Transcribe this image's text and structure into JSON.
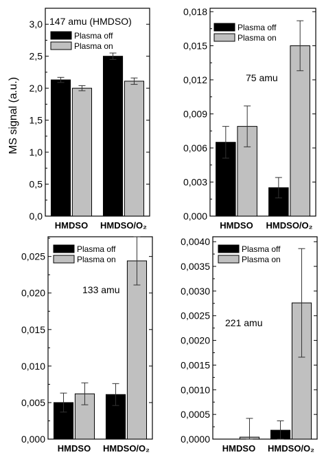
{
  "figure": {
    "ylabel": "MS signal (a.u.)"
  },
  "legend": {
    "off": "Plasma off",
    "on": "Plasma on"
  },
  "colors": {
    "off": "#000000",
    "on": "#c0c0c0",
    "axis": "#000000"
  },
  "chart_data": [
    {
      "type": "bar",
      "annotation": "147 amu (HMDSO)",
      "categories": [
        "HMDSO",
        "HMDSO/O₂"
      ],
      "ylim": [
        0,
        3.25
      ],
      "yticks": [
        "0,0",
        "0,5",
        "1,0",
        "1,5",
        "2,0",
        "2,5",
        "3,0"
      ],
      "ytick_values": [
        0,
        0.5,
        1.0,
        1.5,
        2.0,
        2.5,
        3.0
      ],
      "series": [
        {
          "name": "Plasma off",
          "values": [
            2.13,
            2.5
          ],
          "errors": [
            0.04,
            0.05
          ]
        },
        {
          "name": "Plasma on",
          "values": [
            2.0,
            2.11
          ],
          "errors": [
            0.04,
            0.05
          ]
        }
      ],
      "legend_position": "top-left",
      "grid": false
    },
    {
      "type": "bar",
      "annotation": "75 amu",
      "categories": [
        "HMDSO",
        "HMDSO/O₂"
      ],
      "ylim": [
        0,
        0.0183
      ],
      "yticks": [
        "0,000",
        "0,003",
        "0,006",
        "0,009",
        "0,012",
        "0,015",
        "0,018"
      ],
      "ytick_values": [
        0,
        0.003,
        0.006,
        0.009,
        0.012,
        0.015,
        0.018
      ],
      "series": [
        {
          "name": "Plasma off",
          "values": [
            0.0065,
            0.0025
          ],
          "errors": [
            0.0014,
            0.0009
          ]
        },
        {
          "name": "Plasma on",
          "values": [
            0.0079,
            0.015
          ],
          "errors": [
            0.0018,
            0.0022
          ]
        }
      ],
      "legend_position": "top-left",
      "grid": false
    },
    {
      "type": "bar",
      "annotation": "133 amu",
      "categories": [
        "HMDSO",
        "HMDSO/O₂"
      ],
      "ylim": [
        0,
        0.0277
      ],
      "yticks": [
        "0,000",
        "0,005",
        "0,010",
        "0,015",
        "0,020",
        "0,025"
      ],
      "ytick_values": [
        0,
        0.005,
        0.01,
        0.015,
        0.02,
        0.025
      ],
      "series": [
        {
          "name": "Plasma off",
          "values": [
            0.005,
            0.0061
          ],
          "errors": [
            0.0013,
            0.0015
          ]
        },
        {
          "name": "Plasma on",
          "values": [
            0.0062,
            0.0244
          ],
          "errors": [
            0.0015,
            0.0033
          ]
        }
      ],
      "legend_position": "top-left",
      "grid": false
    },
    {
      "type": "bar",
      "annotation": "221 amu",
      "categories": [
        "HMDSO",
        "HMDSO/O₂"
      ],
      "ylim": [
        0,
        0.0041
      ],
      "yticks": [
        "0,0000",
        "0,0005",
        "0,0010",
        "0,0015",
        "0,0020",
        "0,0025",
        "0,0030",
        "0,0035",
        "0,0040"
      ],
      "ytick_values": [
        0,
        0.0005,
        0.001,
        0.0015,
        0.002,
        0.0025,
        0.003,
        0.0035,
        0.004
      ],
      "series": [
        {
          "name": "Plasma off",
          "values": [
            0.0,
            0.00018
          ],
          "errors": [
            0.0,
            0.00019
          ]
        },
        {
          "name": "Plasma on",
          "values": [
            4e-05,
            0.00276
          ],
          "errors": [
            0.00038,
            0.0011
          ]
        }
      ],
      "legend_position": "top-left",
      "grid": false
    }
  ]
}
